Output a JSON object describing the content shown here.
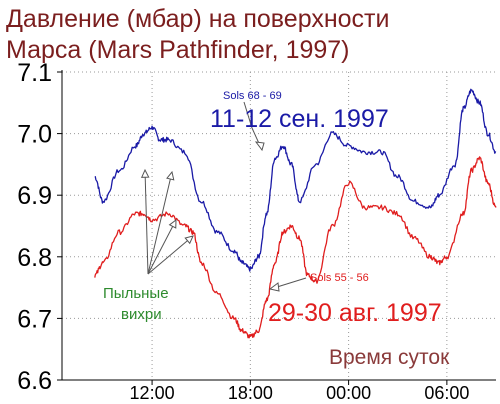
{
  "title_lines": [
    "Давление (мбар) на поверхности",
    "Марса (Mars Pathfinder, 1997)"
  ],
  "colors": {
    "title": "#7b1e1e",
    "blue_series": "#1a1aa6",
    "red_series": "#e01e1e",
    "annotation_green": "#2e8b2e",
    "xlabel": "#8a3a3a",
    "grid": "#9a9a9a",
    "axis": "#000000"
  },
  "chart_data": {
    "type": "line",
    "title": "Давление (мбар) на поверхности Марса (Mars Pathfinder, 1997)",
    "xlabel": "Время суток",
    "ylabel": "",
    "ylim": [
      6.6,
      7.1
    ],
    "xlim": [
      6.5,
      33.0
    ],
    "x_unit": "hours (local solar time, continuing past midnight)",
    "y_ticks": [
      "6.6",
      "6.7",
      "6.8",
      "6.9",
      "7.0",
      "7.1"
    ],
    "y_tick_values": [
      6.6,
      6.7,
      6.8,
      6.9,
      7.0,
      7.1
    ],
    "x_ticks": [
      "12:00",
      "18:00",
      "00:00",
      "06:00"
    ],
    "x_tick_values": [
      12,
      18,
      24,
      30
    ],
    "grid": true,
    "series": [
      {
        "name": "11-12 сен. 1997",
        "sol_label": "Sols 68 - 69",
        "color": "#1a1aa6",
        "x": [
          8.5,
          9.0,
          10.0,
          11.0,
          11.5,
          12.0,
          12.5,
          13.0,
          14.0,
          15.0,
          16.0,
          17.0,
          17.5,
          18.0,
          18.5,
          19.0,
          19.5,
          20.0,
          20.5,
          21.0,
          22.0,
          23.0,
          24.0,
          25.0,
          26.0,
          27.0,
          28.0,
          29.0,
          29.5,
          30.5,
          31.0,
          31.5,
          32.0,
          32.5,
          33.0
        ],
        "y": [
          6.93,
          6.89,
          6.94,
          6.98,
          7.0,
          7.01,
          6.99,
          6.99,
          6.97,
          6.89,
          6.84,
          6.81,
          6.79,
          6.78,
          6.8,
          6.87,
          6.96,
          6.98,
          6.95,
          6.89,
          6.95,
          7.0,
          6.98,
          6.97,
          6.97,
          6.93,
          6.89,
          6.88,
          6.9,
          6.95,
          7.04,
          7.07,
          7.05,
          7.0,
          6.97
        ]
      },
      {
        "name": "29-30 авг. 1997",
        "sol_label": "Sols 55 - 56",
        "color": "#e01e1e",
        "x": [
          8.5,
          9.0,
          10.0,
          11.0,
          11.5,
          12.0,
          13.0,
          14.0,
          14.5,
          15.0,
          16.0,
          17.0,
          17.5,
          18.0,
          18.5,
          19.0,
          19.5,
          20.0,
          20.5,
          21.0,
          21.5,
          22.0,
          23.0,
          24.0,
          25.0,
          26.0,
          27.0,
          28.0,
          29.0,
          29.5,
          30.0,
          31.0,
          31.5,
          32.0,
          32.5,
          33.0
        ],
        "y": [
          6.77,
          6.79,
          6.84,
          6.87,
          6.87,
          6.86,
          6.87,
          6.85,
          6.84,
          6.79,
          6.74,
          6.7,
          6.68,
          6.67,
          6.68,
          6.73,
          6.79,
          6.84,
          6.85,
          6.83,
          6.77,
          6.76,
          6.85,
          6.92,
          6.88,
          6.88,
          6.87,
          6.83,
          6.8,
          6.79,
          6.8,
          6.87,
          6.94,
          6.96,
          6.92,
          6.88
        ]
      }
    ],
    "annotations": [
      {
        "text": "Sols 68 - 69",
        "color": "#1a1aa6"
      },
      {
        "text": "11-12 сен. 1997",
        "color": "#1a1aa6"
      },
      {
        "text": "Sols 55 - 56",
        "color": "#e01e1e"
      },
      {
        "text": "29-30 авг. 1997",
        "color": "#e01e1e"
      },
      {
        "text": "Пыльные",
        "color": "#2e8b2e"
      },
      {
        "text": "вихри",
        "color": "#2e8b2e"
      },
      {
        "text": "Время суток",
        "color": "#8a3a3a"
      }
    ]
  }
}
